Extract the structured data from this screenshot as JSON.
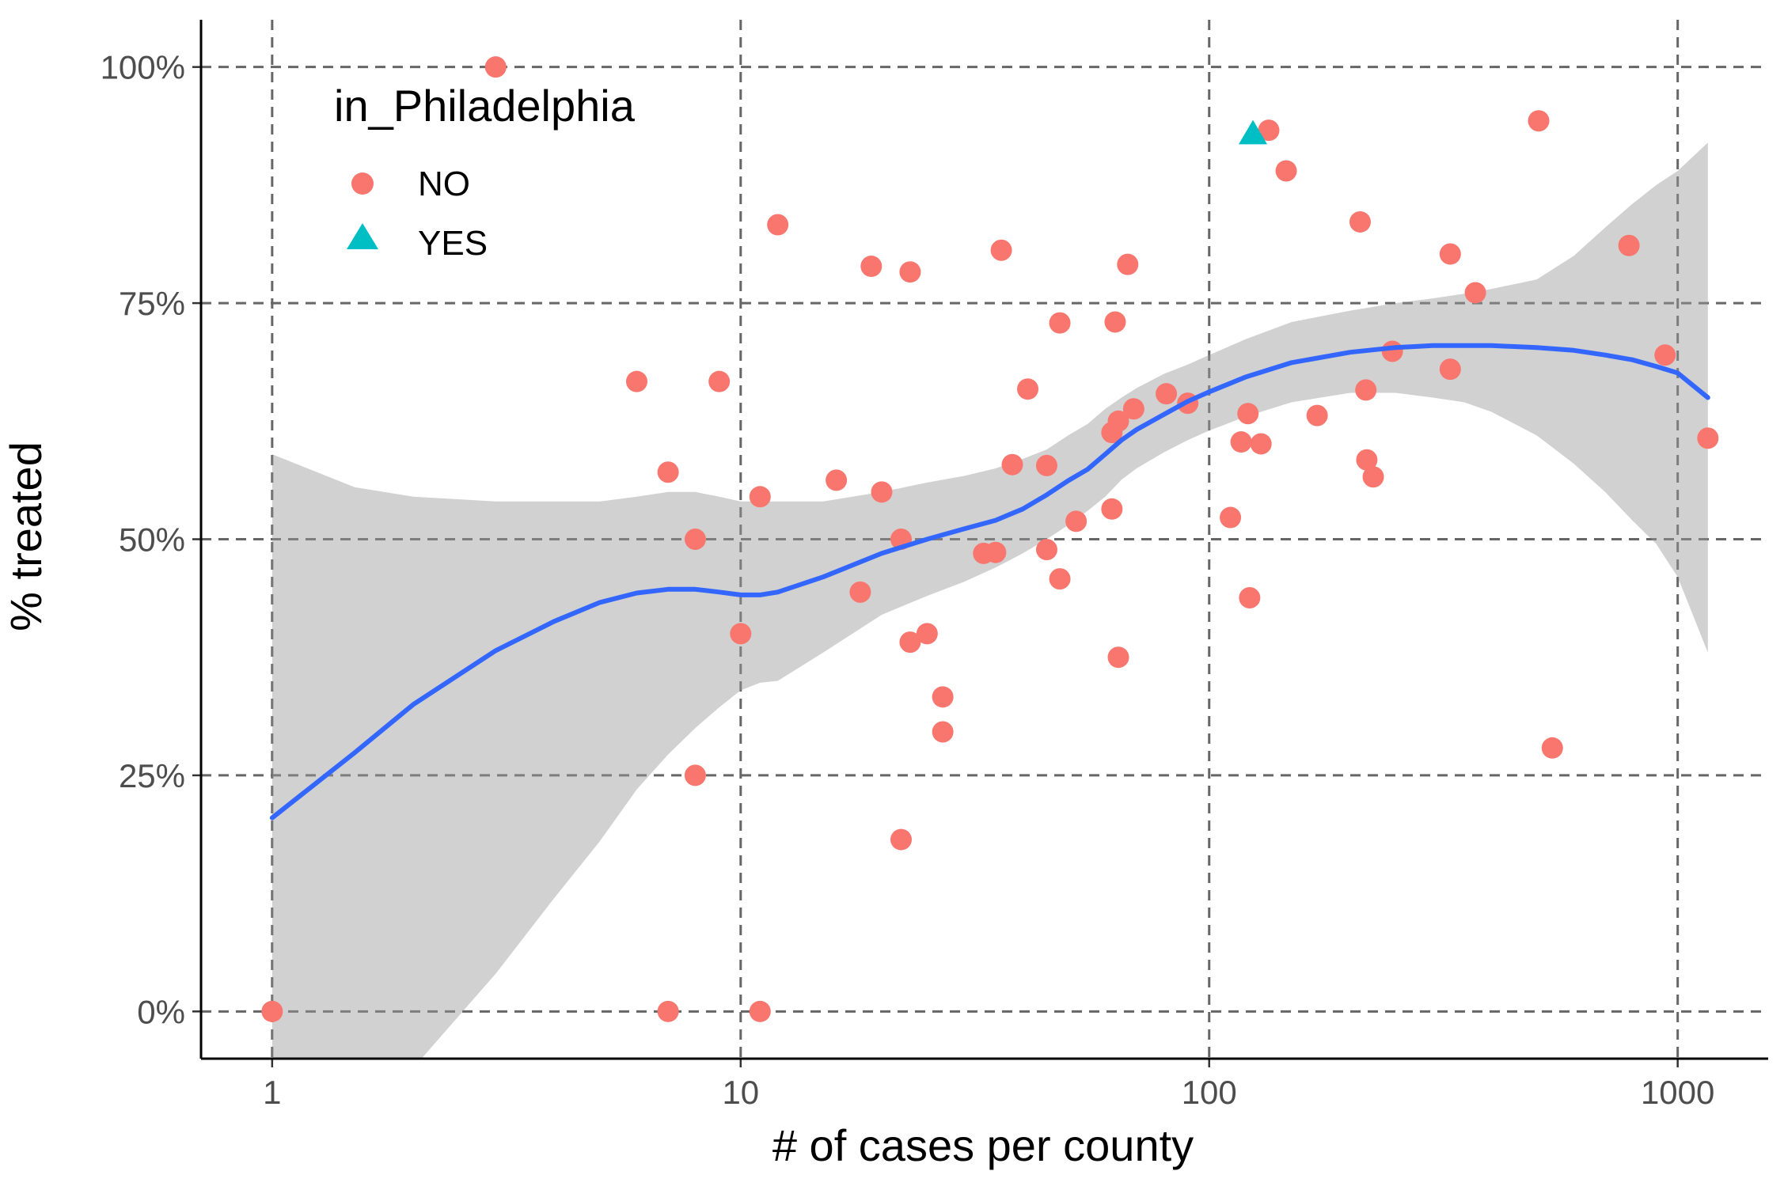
{
  "chart_data": {
    "type": "scatter",
    "xlabel": "# of cases per county",
    "ylabel": "% treated",
    "x_scale": "log10",
    "xlim": [
      0.705,
      1560
    ],
    "ylim": [
      -0.05,
      1.05
    ],
    "x_ticks": [
      {
        "value": 1,
        "label": "1"
      },
      {
        "value": 10,
        "label": "10"
      },
      {
        "value": 100,
        "label": "100"
      },
      {
        "value": 1000,
        "label": "1000"
      }
    ],
    "y_ticks": [
      {
        "value": 0,
        "label": "0%"
      },
      {
        "value": 0.25,
        "label": "25%"
      },
      {
        "value": 0.5,
        "label": "50%"
      },
      {
        "value": 0.75,
        "label": "75%"
      },
      {
        "value": 1,
        "label": "100%"
      }
    ],
    "grid": "dashed major gridlines",
    "legend": {
      "title": "in_Philadelphia",
      "placement": "top-left inside plot",
      "entries": [
        {
          "label": "NO",
          "shape": "circle",
          "color": "#F8766D"
        },
        {
          "label": "YES",
          "shape": "triangle",
          "color": "#00BFC4"
        }
      ]
    },
    "series": [
      {
        "name": "NO",
        "color": "#F8766D",
        "shape": "circle",
        "points": [
          [
            1,
            0.0
          ],
          [
            3,
            1.0
          ],
          [
            6,
            0.667
          ],
          [
            7,
            0.571
          ],
          [
            7,
            0.0
          ],
          [
            8,
            0.5
          ],
          [
            8,
            0.25
          ],
          [
            9,
            0.667
          ],
          [
            10,
            0.4
          ],
          [
            11,
            0.545
          ],
          [
            11,
            0.0
          ],
          [
            12,
            0.833
          ],
          [
            16,
            0.5625
          ],
          [
            18,
            0.444
          ],
          [
            19,
            0.789
          ],
          [
            20,
            0.55
          ],
          [
            22,
            0.5
          ],
          [
            22,
            0.182
          ],
          [
            23,
            0.783
          ],
          [
            23,
            0.391
          ],
          [
            25,
            0.4
          ],
          [
            27,
            0.333
          ],
          [
            27,
            0.296
          ],
          [
            33,
            0.485
          ],
          [
            35,
            0.486
          ],
          [
            36,
            0.806
          ],
          [
            38,
            0.579
          ],
          [
            41,
            0.659
          ],
          [
            45,
            0.578
          ],
          [
            45,
            0.489
          ],
          [
            48,
            0.729
          ],
          [
            48,
            0.458
          ],
          [
            52,
            0.519
          ],
          [
            62,
            0.532
          ],
          [
            62,
            0.613
          ],
          [
            63,
            0.73
          ],
          [
            64,
            0.625
          ],
          [
            64,
            0.375
          ],
          [
            67,
            0.791
          ],
          [
            69,
            0.638
          ],
          [
            81,
            0.654
          ],
          [
            90,
            0.644
          ],
          [
            111,
            0.523
          ],
          [
            117,
            0.603
          ],
          [
            121,
            0.633
          ],
          [
            122,
            0.438
          ],
          [
            129,
            0.601
          ],
          [
            134,
            0.933
          ],
          [
            146,
            0.89
          ],
          [
            170,
            0.631
          ],
          [
            210,
            0.836
          ],
          [
            216,
            0.658
          ],
          [
            217,
            0.584
          ],
          [
            224,
            0.566
          ],
          [
            246,
            0.699
          ],
          [
            327,
            0.802
          ],
          [
            327,
            0.68
          ],
          [
            370,
            0.761
          ],
          [
            505,
            0.943
          ],
          [
            540,
            0.279
          ],
          [
            787,
            0.811
          ],
          [
            940,
            0.695
          ],
          [
            1160,
            0.607
          ]
        ]
      },
      {
        "name": "YES",
        "color": "#00BFC4",
        "shape": "triangle",
        "points": [
          [
            124,
            0.928
          ]
        ]
      }
    ],
    "smooth": {
      "color": "#3366FF",
      "band_color": "#999999",
      "x": [
        1,
        1.5,
        2,
        3,
        4,
        5,
        6,
        7,
        8,
        9,
        10,
        11,
        12,
        15,
        20,
        25,
        30,
        35,
        40,
        45,
        50,
        55,
        60,
        65,
        70,
        80,
        90,
        100,
        120,
        150,
        200,
        250,
        300,
        350,
        400,
        500,
        600,
        700,
        800,
        900,
        1000,
        1160
      ],
      "fit": [
        0.205,
        0.274,
        0.325,
        0.382,
        0.413,
        0.433,
        0.443,
        0.447,
        0.447,
        0.444,
        0.441,
        0.441,
        0.444,
        0.46,
        0.485,
        0.5,
        0.511,
        0.52,
        0.532,
        0.547,
        0.562,
        0.574,
        0.59,
        0.605,
        0.616,
        0.632,
        0.646,
        0.656,
        0.672,
        0.687,
        0.698,
        0.703,
        0.705,
        0.705,
        0.705,
        0.703,
        0.7,
        0.695,
        0.69,
        0.683,
        0.676,
        0.65
      ],
      "lower": [
        -0.18,
        -0.12,
        -0.06,
        0.04,
        0.12,
        0.18,
        0.235,
        0.272,
        0.3,
        0.322,
        0.34,
        0.348,
        0.35,
        0.38,
        0.42,
        0.44,
        0.455,
        0.47,
        0.485,
        0.5,
        0.515,
        0.53,
        0.545,
        0.563,
        0.575,
        0.592,
        0.605,
        0.615,
        0.63,
        0.645,
        0.655,
        0.655,
        0.65,
        0.645,
        0.635,
        0.61,
        0.58,
        0.55,
        0.52,
        0.495,
        0.46,
        0.38
      ],
      "upper": [
        0.59,
        0.555,
        0.545,
        0.54,
        0.54,
        0.54,
        0.545,
        0.55,
        0.55,
        0.545,
        0.54,
        0.54,
        0.54,
        0.54,
        0.55,
        0.56,
        0.567,
        0.575,
        0.585,
        0.595,
        0.61,
        0.622,
        0.638,
        0.65,
        0.66,
        0.675,
        0.685,
        0.695,
        0.712,
        0.73,
        0.742,
        0.75,
        0.755,
        0.76,
        0.765,
        0.775,
        0.8,
        0.83,
        0.855,
        0.875,
        0.89,
        0.92
      ]
    }
  }
}
